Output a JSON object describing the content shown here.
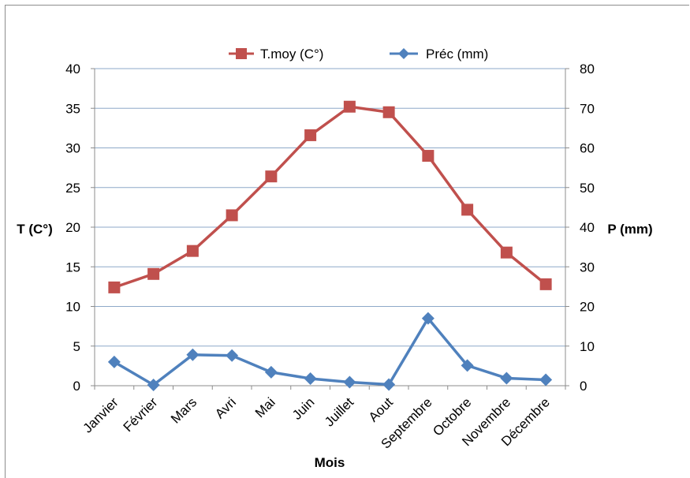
{
  "chart_data": {
    "type": "line",
    "categories": [
      "Janvier",
      "Février",
      "Mars",
      "Avri",
      "Mai",
      "Juin",
      "Juillet",
      "Aout",
      "Septembre",
      "Octobre",
      "Novembre",
      "Décembre"
    ],
    "series": [
      {
        "name": "T.moy (C°)",
        "axis": "left",
        "color": "#c0504d",
        "marker": "square",
        "values": [
          12.4,
          14.1,
          17.0,
          21.5,
          26.4,
          31.6,
          35.2,
          34.5,
          29.0,
          22.2,
          16.8,
          12.8
        ]
      },
      {
        "name": "Préc (mm)",
        "axis": "right",
        "color": "#4f81bd",
        "marker": "diamond",
        "values": [
          6.0,
          0.2,
          7.8,
          7.6,
          3.4,
          1.8,
          0.9,
          0.3,
          17.0,
          5.1,
          1.9,
          1.5
        ]
      }
    ],
    "xlabel": "Mois",
    "ylabel_left": "T (C°)",
    "ylabel_right": "P (mm)",
    "ylim_left": [
      0,
      40
    ],
    "ylim_right": [
      0,
      80
    ],
    "yticks_left": [
      "0",
      "5",
      "10",
      "15",
      "20",
      "25",
      "30",
      "35",
      "40"
    ],
    "yticks_right": [
      "0",
      "10",
      "20",
      "30",
      "40",
      "50",
      "60",
      "70",
      "80"
    ],
    "grid": true,
    "legend_position": "top-center"
  }
}
